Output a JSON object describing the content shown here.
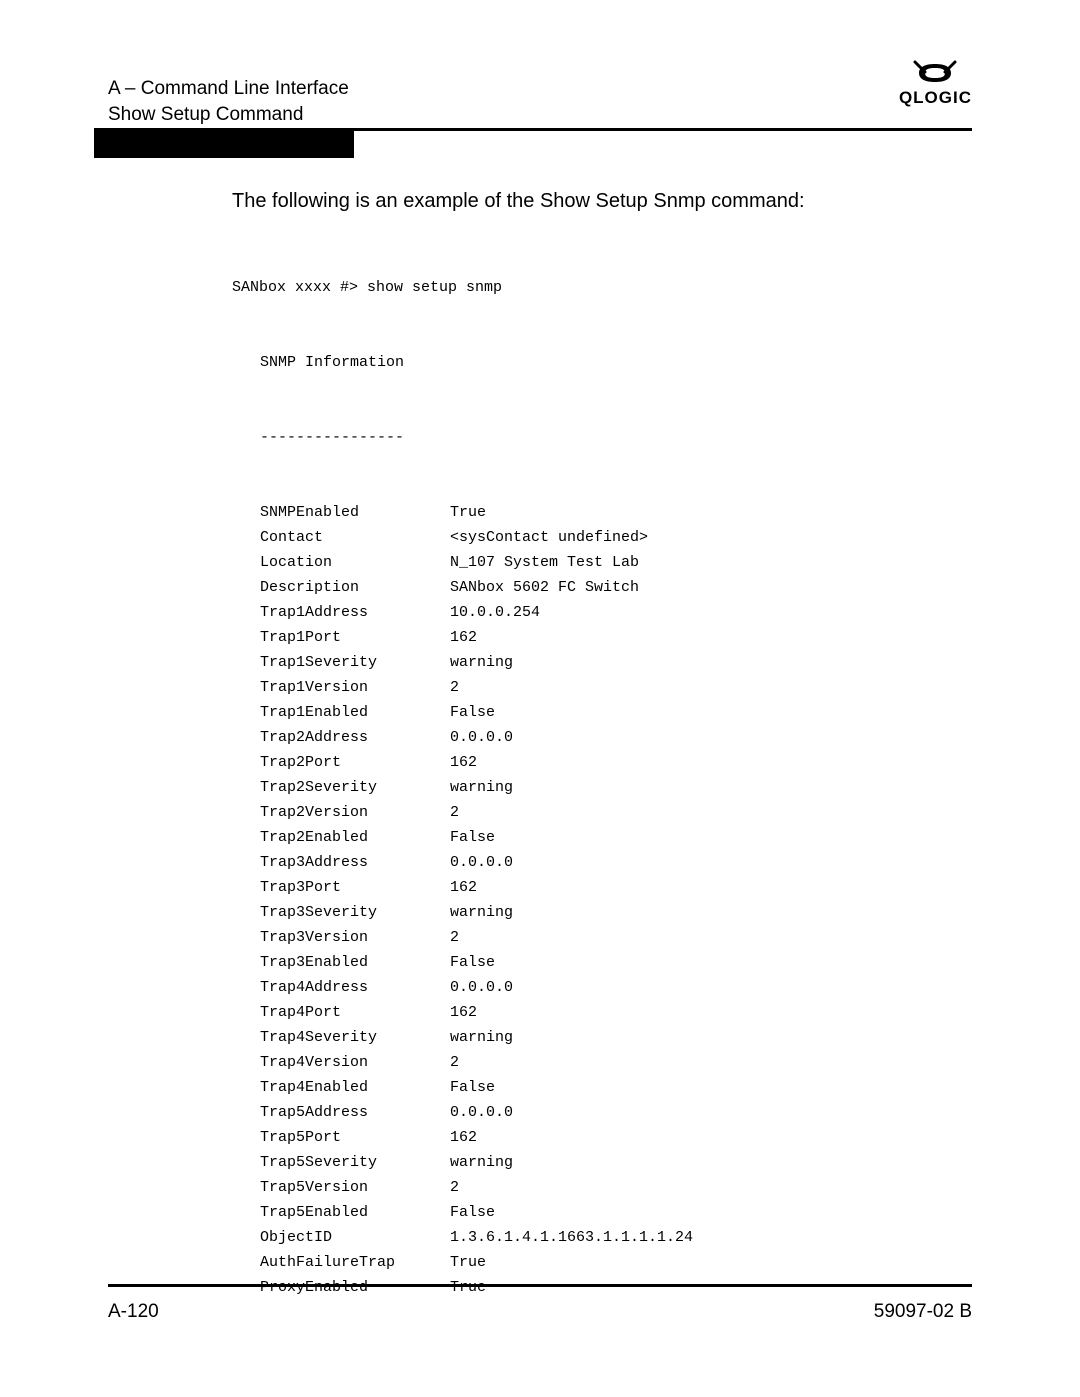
{
  "header": {
    "section": "A – Command Line Interface",
    "subsection": "Show Setup Command",
    "logo_word": "QLOGIC"
  },
  "intro": "The following is an example of the Show Setup Snmp command:",
  "cli": {
    "prompt": "SANbox xxxx #> show setup snmp",
    "title": "SNMP Information",
    "rule": "----------------",
    "rows": [
      {
        "k": "SNMPEnabled",
        "v": "True"
      },
      {
        "k": "Contact",
        "v": "<sysContact undefined>"
      },
      {
        "k": "Location",
        "v": "N_107 System Test Lab"
      },
      {
        "k": "Description",
        "v": "SANbox 5602 FC Switch"
      },
      {
        "k": "Trap1Address",
        "v": "10.0.0.254"
      },
      {
        "k": "Trap1Port",
        "v": "162"
      },
      {
        "k": "Trap1Severity",
        "v": "warning"
      },
      {
        "k": "Trap1Version",
        "v": "2"
      },
      {
        "k": "Trap1Enabled",
        "v": "False"
      },
      {
        "k": "Trap2Address",
        "v": "0.0.0.0"
      },
      {
        "k": "Trap2Port",
        "v": "162"
      },
      {
        "k": "Trap2Severity",
        "v": "warning"
      },
      {
        "k": "Trap2Version",
        "v": "2"
      },
      {
        "k": "Trap2Enabled",
        "v": "False"
      },
      {
        "k": "Trap3Address",
        "v": "0.0.0.0"
      },
      {
        "k": "Trap3Port",
        "v": "162"
      },
      {
        "k": "Trap3Severity",
        "v": "warning"
      },
      {
        "k": "Trap3Version",
        "v": "2"
      },
      {
        "k": "Trap3Enabled",
        "v": "False"
      },
      {
        "k": "Trap4Address",
        "v": "0.0.0.0"
      },
      {
        "k": "Trap4Port",
        "v": "162"
      },
      {
        "k": "Trap4Severity",
        "v": "warning"
      },
      {
        "k": "Trap4Version",
        "v": "2"
      },
      {
        "k": "Trap4Enabled",
        "v": "False"
      },
      {
        "k": "Trap5Address",
        "v": "0.0.0.0"
      },
      {
        "k": "Trap5Port",
        "v": "162"
      },
      {
        "k": "Trap5Severity",
        "v": "warning"
      },
      {
        "k": "Trap5Version",
        "v": "2"
      },
      {
        "k": "Trap5Enabled",
        "v": "False"
      },
      {
        "k": "ObjectID",
        "v": "1.3.6.1.4.1.1663.1.1.1.1.24"
      },
      {
        "k": "AuthFailureTrap",
        "v": "True"
      },
      {
        "k": "ProxyEnabled",
        "v": "True"
      }
    ]
  },
  "footer": {
    "left": "A-120",
    "right": "59097-02 B"
  }
}
